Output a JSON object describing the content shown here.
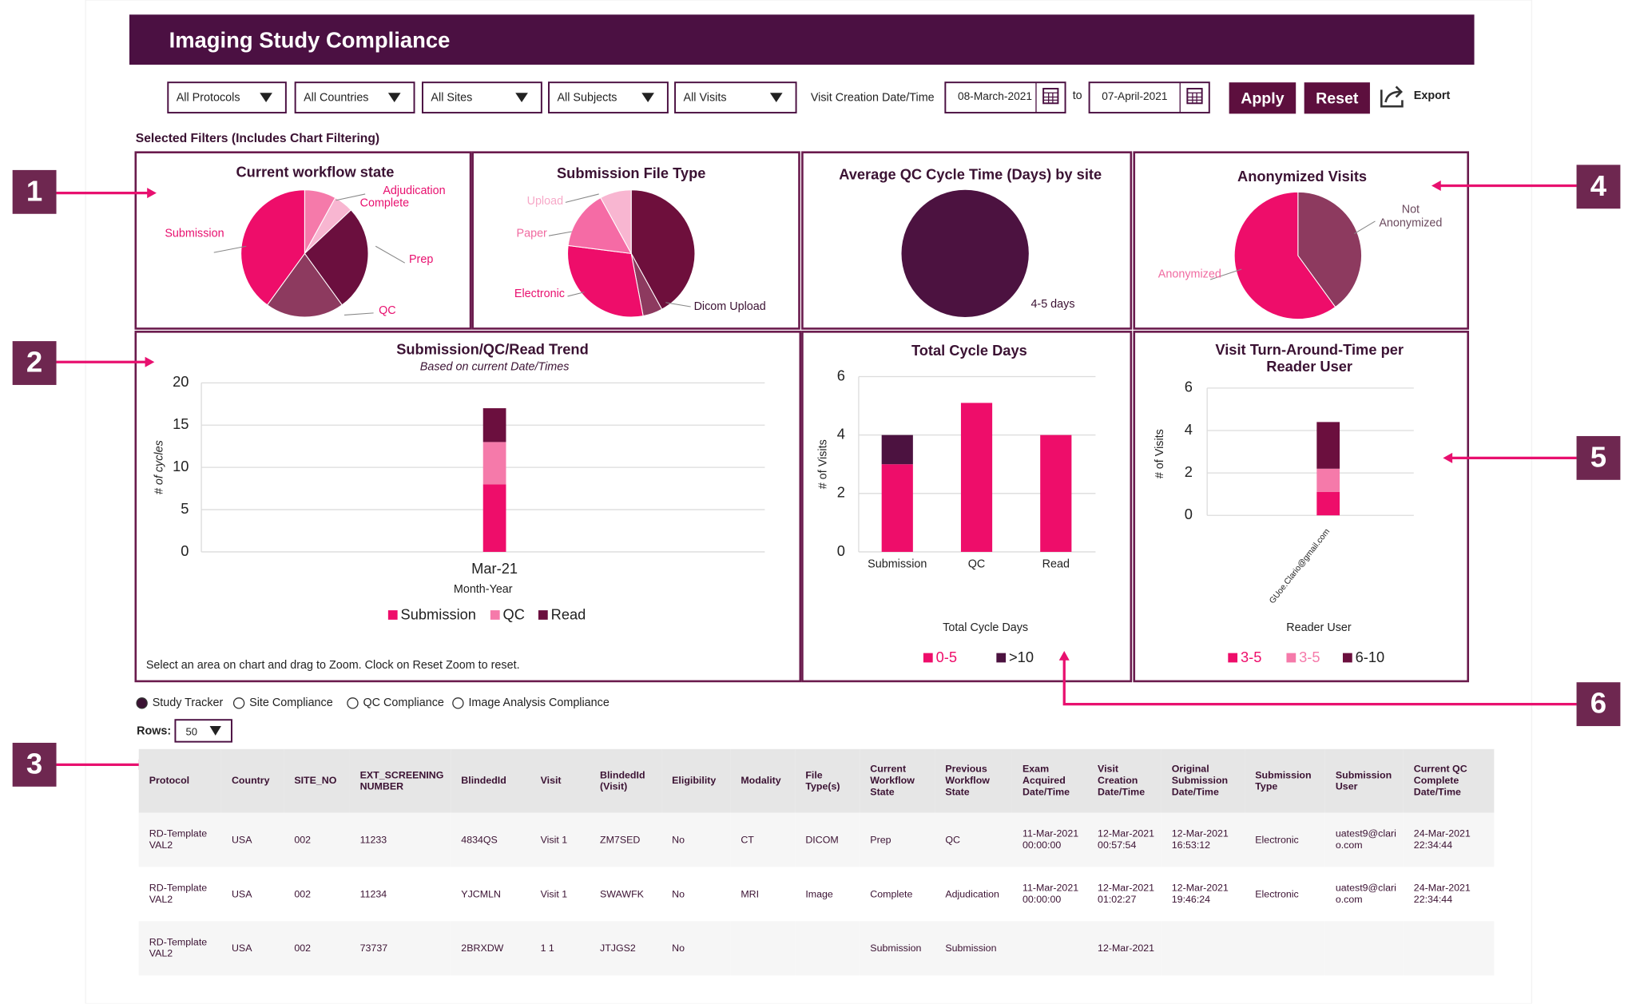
{
  "header": {
    "title": "Imaging Study Compliance"
  },
  "filters": {
    "dropdowns": [
      "All Protocols",
      "All Countries",
      "All Sites",
      "All Subjects",
      "All Visits"
    ],
    "date_label": "Visit Creation Date/Time",
    "date_from": "08-March-2021",
    "to": "to",
    "date_to": "07-April-2021",
    "buttons": [
      "Apply",
      "Reset"
    ],
    "export": "Export"
  },
  "selected_filters_label": "Selected Filters (Includes Chart Filtering)",
  "callouts": [
    "1",
    "2",
    "3",
    "4",
    "5",
    "6"
  ],
  "charts": [
    {
      "type": "pie",
      "title": "Current workflow state",
      "labels": [
        "Adjudication",
        "Complete",
        "Prep",
        "QC",
        "Submission"
      ],
      "values": [
        8,
        5,
        27,
        20,
        40
      ],
      "colors": [
        "#f57aaa",
        "#f8b6d1",
        "#6b0f3e",
        "#8d3a5f",
        "#ee0d6a"
      ]
    },
    {
      "type": "pie",
      "title": "Submission File Type",
      "labels": [
        null,
        "Dicom Upload",
        "Electronic",
        "Paper",
        "Upload"
      ],
      "values": [
        42,
        5,
        30,
        15,
        8
      ],
      "colors": [
        "#6e0f3c",
        "#8d3a5f",
        "#ee0d6a",
        "#f56ba5",
        "#f8b6d1"
      ]
    },
    {
      "type": "pie",
      "title": "Average QC Cycle Time (Days) by site",
      "labels": [
        "4-5 days"
      ],
      "values": [
        100
      ],
      "colors": [
        "#4c1240"
      ]
    },
    {
      "type": "pie",
      "title": "Anonymized Visits",
      "labels": [
        "Not Anonymized",
        "Anonymized"
      ],
      "values": [
        40,
        60
      ],
      "colors": [
        "#8d3a5f",
        "#ee0d6a"
      ]
    },
    {
      "type": "stacked_bar",
      "title": "Submission/QC/Read Trend",
      "subtitle": "Based on current Date/Times",
      "categories": [
        "Mar-21"
      ],
      "x_label": "Month-Year",
      "y_label": "# of cycles",
      "series": [
        {
          "name": "Submission",
          "color": "#ee0d6a",
          "values": [
            8
          ]
        },
        {
          "name": "QC",
          "color": "#f57aaa",
          "values": [
            5
          ]
        },
        {
          "name": "Read",
          "color": "#6b0f3e",
          "values": [
            4
          ]
        }
      ],
      "ylim": [
        0,
        20
      ],
      "yticks": [
        0,
        5,
        10,
        15,
        20
      ],
      "grid": true,
      "note": "Select an area on chart and drag to Zoom. Clock on Reset Zoom to reset."
    },
    {
      "type": "stacked_bar",
      "title": "Total Cycle Days",
      "categories": [
        "Submission",
        "QC",
        "Read"
      ],
      "x_label": "Total Cycle Days",
      "y_label": "# of Visits",
      "series": [
        {
          "name": "0-5",
          "color": "#ee0d6a",
          "values": [
            3,
            5.1,
            4
          ]
        },
        {
          "name": ">10",
          "color": "#4c1240",
          "values": [
            1,
            0,
            0
          ]
        }
      ],
      "ylim": [
        0,
        6
      ],
      "yticks": [
        0,
        2,
        4,
        6
      ],
      "grid": true
    },
    {
      "type": "stacked_bar",
      "title": "Visit Turn-Around-Time per Reader User",
      "categories": [
        "GUoe.Clario@gmail.com"
      ],
      "x_label": "Reader User",
      "y_label": "# of Visits",
      "series": [
        {
          "name": "3-5",
          "color": "#ee0d6a",
          "values": [
            1.1
          ]
        },
        {
          "name": "3-5",
          "color": "#f57aaa",
          "values": [
            1.1
          ]
        },
        {
          "name": "6-10",
          "color": "#6b0f3e",
          "values": [
            2.2
          ]
        }
      ],
      "ylim": [
        0,
        6
      ],
      "yticks": [
        0,
        2,
        4,
        6
      ],
      "grid": true
    }
  ],
  "view_options": {
    "options": [
      "Study Tracker",
      "Site Compliance",
      "QC Compliance",
      "Image Analysis Compliance"
    ],
    "selected": 0
  },
  "rows_label": "Rows:",
  "rows_value": "50",
  "table": {
    "columns": [
      "Protocol",
      "Country",
      "SITE_NO",
      "EXT_SCREENING NUMBER",
      "BlindedId",
      "Visit",
      "BlindedId (Visit)",
      "Eligibility",
      "Modality",
      "File Type(s)",
      "Current Workflow State",
      "Previous Workflow State",
      "Exam Acquired Date/Time",
      "Visit Creation Date/Time",
      "Original Submission Date/Time",
      "Submission Type",
      "Submission User",
      "Current QC Complete Date/Time"
    ],
    "rows": [
      [
        "RD-Template VAL2",
        "USA",
        "002",
        "11233",
        "4834QS",
        "Visit 1",
        "ZM7SED",
        "No",
        "CT",
        "DICOM",
        "Prep",
        "QC",
        "11-Mar-2021 00:00:00",
        "12-Mar-2021 00:57:54",
        "12-Mar-2021 16:53:12",
        "Electronic",
        "uatest9@clario.com",
        "24-Mar-2021 22:34:44"
      ],
      [
        "RD-Template VAL2",
        "USA",
        "002",
        "11234",
        "YJCMLN",
        "Visit 1",
        "SWAWFK",
        "No",
        "MRI",
        "Image",
        "Complete",
        "Adjudication",
        "11-Mar-2021 00:00:00",
        "12-Mar-2021 01:02:27",
        "12-Mar-2021 19:46:24",
        "Electronic",
        "uatest9@clario.com",
        "24-Mar-2021 22:34:44"
      ],
      [
        "RD-Template VAL2",
        "USA",
        "002",
        "73737",
        "2BRXDW",
        "1 1",
        "JTJGS2",
        "No",
        null,
        null,
        "Submission",
        "Submission",
        null,
        "12-Mar-2021",
        null,
        null,
        null,
        null
      ]
    ]
  }
}
